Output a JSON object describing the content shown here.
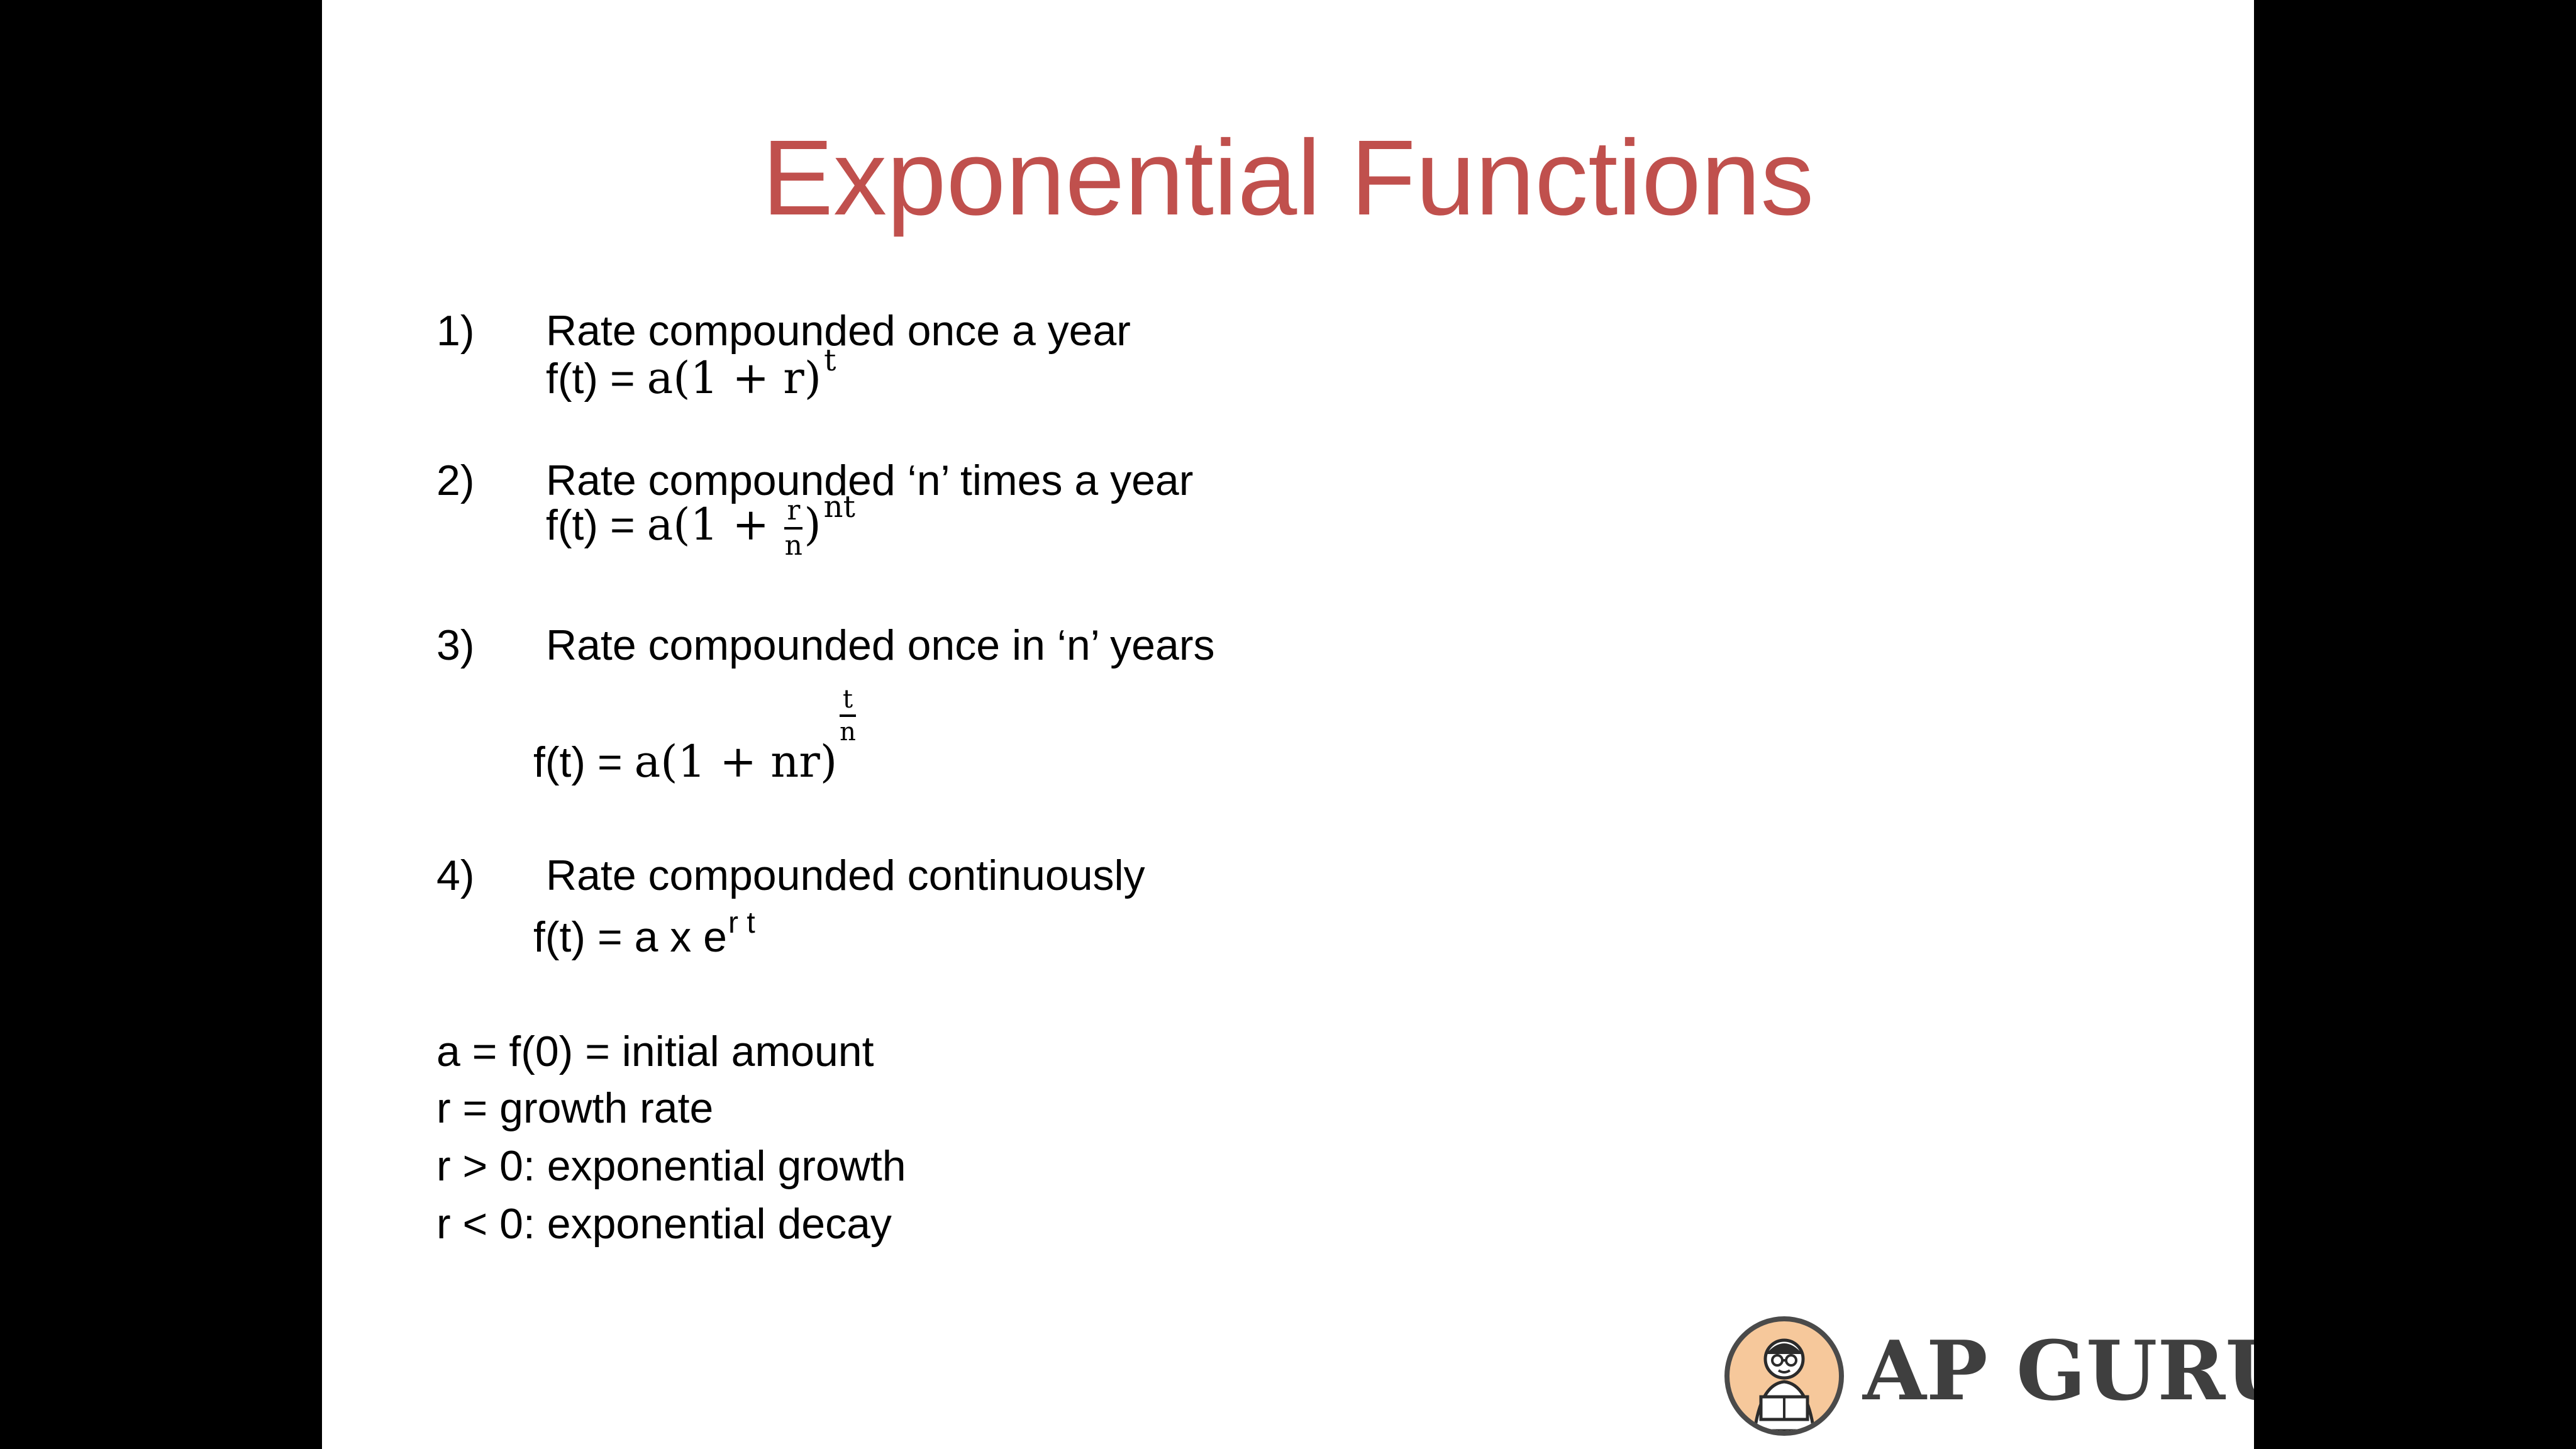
{
  "title": "Exponential Functions",
  "items": [
    {
      "number": "1)",
      "heading": "Rate compounded once a year",
      "formula": {
        "lhs": "f(t) = ",
        "body": "a(1 + r)",
        "exp": "t"
      }
    },
    {
      "number": "2)",
      "heading": "Rate compounded ‘n’ times a year",
      "formula": {
        "lhs": "f(t) = ",
        "pre": "a(1 + ",
        "frac_num": "r",
        "frac_den": "n",
        "post": ")",
        "exp": "nt"
      }
    },
    {
      "number": "3)",
      "heading": "Rate compounded once in ‘n’ years",
      "formula": {
        "lhs": "f(t) = ",
        "body": "a(1 + nr)",
        "exp_num": "t",
        "exp_den": "n"
      }
    },
    {
      "number": "4)",
      "heading": "Rate compounded continuously",
      "formula": {
        "lhs": "f(t) = a x e",
        "exp": "r t"
      }
    }
  ],
  "definitions": [
    "a = f(0) = initial amount",
    "r = growth rate",
    "r > 0: exponential growth",
    "r < 0: exponential decay"
  ],
  "logo": {
    "text": "AP GURU",
    "colors": {
      "badge": "#f6c89b",
      "text": "#3f3f3f"
    }
  },
  "colors": {
    "title": "#c0504d",
    "background_side": "#000000",
    "slide": "#ffffff"
  }
}
